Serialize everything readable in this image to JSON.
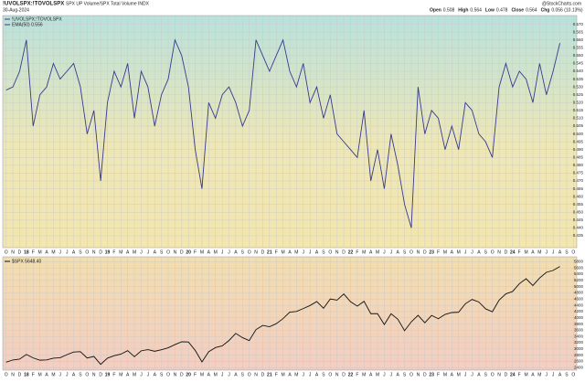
{
  "header": {
    "title": "!UVOLSPX:!TOVOLSPX",
    "subtitle": "SPX UP Volume/SPX Total Volume INDX",
    "date": "30-Aug-2024",
    "source": "@StockCharts.com",
    "quote": [
      [
        "Open",
        "0.508"
      ],
      [
        "High",
        "0.564"
      ],
      [
        "Low",
        "0.478"
      ],
      [
        "Close",
        "0.564"
      ],
      [
        "Chg",
        "0.056 (10.13%)"
      ]
    ]
  },
  "chart_data": [
    {
      "type": "line",
      "legend_note": "EMA(50) 0.556",
      "categories": [
        "O",
        "N",
        "D",
        "18",
        "F",
        "M",
        "A",
        "M",
        "J",
        "J",
        "A",
        "S",
        "O",
        "N",
        "D",
        "19",
        "F",
        "M",
        "A",
        "M",
        "J",
        "J",
        "A",
        "S",
        "O",
        "N",
        "D",
        "20",
        "F",
        "M",
        "A",
        "M",
        "J",
        "J",
        "A",
        "S",
        "O",
        "N",
        "D",
        "21",
        "F",
        "M",
        "A",
        "M",
        "J",
        "J",
        "A",
        "S",
        "O",
        "N",
        "D",
        "22",
        "F",
        "M",
        "A",
        "M",
        "J",
        "J",
        "A",
        "S",
        "O",
        "N",
        "D",
        "23",
        "F",
        "M",
        "A",
        "M",
        "J",
        "J",
        "A",
        "S",
        "O",
        "N",
        "D",
        "24",
        "F",
        "M",
        "A",
        "M",
        "J",
        "J",
        "A",
        "S",
        "O"
      ],
      "series": [
        {
          "name": "!UVOLSPX:!TOVOLSPX",
          "color": "#363a8e",
          "values": [
            0.528,
            0.53,
            0.54,
            0.56,
            0.505,
            0.525,
            0.53,
            0.545,
            0.535,
            0.54,
            0.545,
            0.53,
            0.5,
            0.515,
            0.47,
            0.52,
            0.54,
            0.53,
            0.545,
            0.51,
            0.54,
            0.53,
            0.505,
            0.525,
            0.535,
            0.56,
            0.55,
            0.53,
            0.49,
            0.465,
            0.52,
            0.51,
            0.525,
            0.53,
            0.52,
            0.505,
            0.515,
            0.56,
            0.55,
            0.54,
            0.55,
            0.56,
            0.54,
            0.53,
            0.545,
            0.52,
            0.53,
            0.51,
            0.525,
            0.5,
            0.495,
            0.49,
            0.485,
            0.515,
            0.47,
            0.49,
            0.465,
            0.5,
            0.48,
            0.455,
            0.44,
            0.53,
            0.5,
            0.515,
            0.51,
            0.49,
            0.505,
            0.49,
            0.52,
            0.515,
            0.5,
            0.495,
            0.485,
            0.53,
            0.545,
            0.53,
            0.54,
            0.535,
            0.52,
            0.545,
            0.525,
            0.54,
            0.558,
            null,
            null
          ]
        }
      ],
      "ylim": [
        0.428,
        0.575
      ],
      "yticks": [
        0.435,
        {
          "value": 0.44,
          "label": "0.440"
        },
        0.445,
        {
          "value": 0.45,
          "label": "0.450"
        },
        0.455,
        {
          "value": 0.46,
          "label": "0.460"
        },
        0.465,
        {
          "value": 0.47,
          "label": "0.470"
        },
        0.475,
        {
          "value": 0.48,
          "label": "0.480"
        },
        0.485,
        {
          "value": 0.49,
          "label": "0.490"
        },
        0.495,
        {
          "value": 0.5,
          "label": "0.500"
        },
        0.505,
        {
          "value": 0.51,
          "label": "0.510"
        },
        0.515,
        {
          "value": 0.52,
          "label": "0.520"
        },
        0.525,
        {
          "value": 0.53,
          "label": "0.530"
        },
        0.535,
        {
          "value": 0.54,
          "label": "0.540"
        },
        0.545,
        {
          "value": 0.55,
          "label": "0.550"
        },
        0.555,
        {
          "value": 0.56,
          "label": "0.560"
        },
        0.565,
        {
          "value": 0.57,
          "label": "0.570"
        }
      ],
      "grid": true
    },
    {
      "type": "line",
      "categories": [
        "O",
        "N",
        "D",
        "18",
        "F",
        "M",
        "A",
        "M",
        "J",
        "J",
        "A",
        "S",
        "O",
        "N",
        "D",
        "19",
        "F",
        "M",
        "A",
        "M",
        "J",
        "J",
        "A",
        "S",
        "O",
        "N",
        "D",
        "20",
        "F",
        "M",
        "A",
        "M",
        "J",
        "J",
        "A",
        "S",
        "O",
        "N",
        "D",
        "21",
        "F",
        "M",
        "A",
        "M",
        "J",
        "J",
        "A",
        "S",
        "O",
        "N",
        "D",
        "22",
        "F",
        "M",
        "A",
        "M",
        "J",
        "J",
        "A",
        "S",
        "O",
        "N",
        "D",
        "23",
        "F",
        "M",
        "A",
        "M",
        "J",
        "J",
        "A",
        "S",
        "O",
        "N",
        "D",
        "24",
        "F",
        "M",
        "A",
        "M",
        "J",
        "J",
        "A",
        "S",
        "O"
      ],
      "series": [
        {
          "name": "$SPX 5648.40",
          "color": "#111111",
          "values": [
            2575,
            2647,
            2673,
            2823,
            2713,
            2640,
            2648,
            2705,
            2718,
            2816,
            2901,
            2913,
            2711,
            2760,
            2506,
            2704,
            2784,
            2834,
            2945,
            2752,
            2941,
            2980,
            2926,
            2976,
            3037,
            3140,
            3230,
            3225,
            2954,
            2584,
            2912,
            3044,
            3100,
            3271,
            3500,
            3363,
            3270,
            3621,
            3756,
            3714,
            3811,
            3973,
            4181,
            4204,
            4297,
            4395,
            4523,
            4307,
            4605,
            4567,
            4766,
            4516,
            4374,
            4530,
            4132,
            4132,
            3785,
            4130,
            3955,
            3586,
            3872,
            4080,
            3840,
            4077,
            3970,
            4109,
            4169,
            4180,
            4450,
            4589,
            4508,
            4288,
            4194,
            4568,
            4770,
            4846,
            5096,
            5254,
            5036,
            5278,
            5460,
            5522,
            5648,
            null,
            null
          ]
        }
      ],
      "ylim": [
        2350,
        5900
      ],
      "yticks": [
        2400,
        2600,
        2800,
        3000,
        3200,
        3400,
        3600,
        3800,
        4000,
        4200,
        4400,
        4600,
        4800,
        5000,
        5200,
        5400,
        5600,
        5800
      ],
      "grid": true
    }
  ]
}
